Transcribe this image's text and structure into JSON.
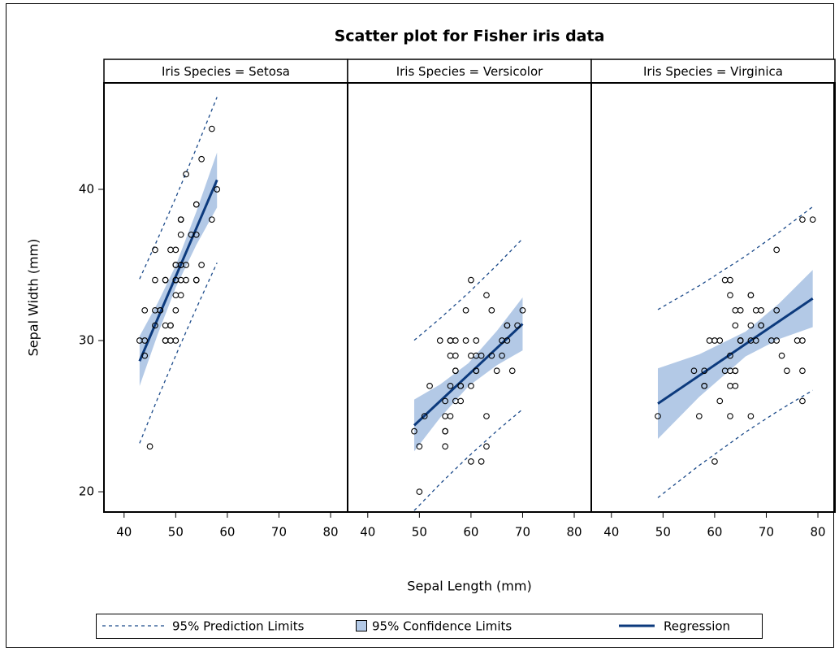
{
  "title": "Scatter plot for Fisher iris data",
  "xlabel": "Sepal Length (mm)",
  "ylabel": "Sepal Width (mm)",
  "marker_color": "#000000",
  "legend": [
    {
      "name": "95% Prediction Limits",
      "color": "#1b4a8a"
    },
    {
      "name": "95% Confidence Limits",
      "color": "#b3c9e6"
    },
    {
      "name": "Regression",
      "color": "#0c3a7d"
    }
  ],
  "chart_data": [
    {
      "type": "scatter",
      "title": "Iris Species = Setosa",
      "x": [
        51,
        49,
        47,
        46,
        50,
        54,
        46,
        50,
        44,
        49,
        54,
        48,
        48,
        43,
        58,
        57,
        54,
        51,
        57,
        51,
        54,
        51,
        46,
        51,
        48,
        50,
        50,
        52,
        52,
        47,
        48,
        54,
        52,
        55,
        49,
        50,
        55,
        49,
        44,
        51,
        50,
        45,
        44,
        50,
        51,
        48,
        51,
        46,
        53,
        50
      ],
      "values": [
        35,
        30,
        32,
        31,
        36,
        39,
        34,
        34,
        29,
        31,
        37,
        34,
        30,
        30,
        40,
        44,
        39,
        35,
        38,
        38,
        34,
        37,
        36,
        33,
        34,
        30,
        34,
        35,
        34,
        32,
        31,
        34,
        41,
        42,
        31,
        32,
        35,
        36,
        30,
        34,
        35,
        23,
        32,
        35,
        38,
        30,
        38,
        32,
        37,
        33
      ],
      "fit": {
        "x": [
          43,
          46.5,
          50,
          54,
          58
        ],
        "values": [
          28.64,
          31.44,
          34.23,
          37.43,
          40.62
        ],
        "clm_lower": [
          26.99,
          30.4,
          33.5,
          36.33,
          38.8
        ],
        "clm_upper": [
          30.29,
          32.48,
          34.96,
          38.53,
          42.44
        ],
        "pi_lower": [
          23.21,
          26.17,
          29.01,
          32.14,
          35.14
        ],
        "pi_upper": [
          34.07,
          36.71,
          39.45,
          42.72,
          46.1
        ]
      },
      "xlim": [
        36.1,
        83.3
      ],
      "xticks": [
        40,
        50,
        60,
        70,
        80
      ],
      "ylim": [
        18.66,
        47.04
      ],
      "yticks": [
        20,
        30,
        40
      ]
    },
    {
      "type": "scatter",
      "title": "Iris Species = Versicolor",
      "x": [
        70,
        64,
        69,
        55,
        65,
        57,
        63,
        49,
        66,
        52,
        50,
        59,
        60,
        61,
        56,
        67,
        56,
        58,
        62,
        56,
        59,
        61,
        63,
        61,
        64,
        66,
        68,
        67,
        60,
        57,
        55,
        55,
        58,
        60,
        54,
        60,
        67,
        63,
        56,
        55,
        55,
        61,
        58,
        50,
        56,
        57,
        57,
        62,
        51,
        57
      ],
      "values": [
        32,
        32,
        31,
        23,
        28,
        28,
        33,
        24,
        29,
        27,
        20,
        30,
        22,
        29,
        29,
        31,
        30,
        27,
        22,
        25,
        32,
        28,
        25,
        28,
        29,
        30,
        28,
        30,
        29,
        26,
        24,
        24,
        27,
        27,
        30,
        34,
        31,
        23,
        30,
        25,
        26,
        30,
        26,
        23,
        27,
        30,
        29,
        29,
        25,
        28
      ],
      "fit": {
        "x": [
          49,
          54,
          59.5,
          65,
          70
        ],
        "values": [
          24.39,
          25.99,
          27.74,
          29.5,
          31.1
        ],
        "clm_lower": [
          22.68,
          24.89,
          26.98,
          28.37,
          29.35
        ],
        "clm_upper": [
          26.1,
          27.09,
          28.5,
          30.63,
          32.85
        ],
        "pi_lower": [
          18.76,
          20.52,
          22.33,
          24.02,
          25.46
        ],
        "pi_upper": [
          30.02,
          31.46,
          33.15,
          34.98,
          36.74
        ]
      },
      "xlim": [
        36.1,
        83.3
      ],
      "xticks": [
        40,
        50,
        60,
        70,
        80
      ],
      "ylim": [
        18.66,
        47.04
      ]
    },
    {
      "type": "scatter",
      "title": "Iris Species = Virginica",
      "x": [
        63,
        58,
        71,
        63,
        65,
        76,
        49,
        73,
        67,
        72,
        65,
        64,
        68,
        57,
        58,
        64,
        65,
        77,
        77,
        60,
        69,
        56,
        77,
        63,
        67,
        72,
        62,
        61,
        64,
        72,
        74,
        79,
        64,
        63,
        61,
        77,
        63,
        64,
        60,
        69,
        67,
        69,
        58,
        68,
        67,
        67,
        63,
        65,
        62,
        59
      ],
      "values": [
        33,
        27,
        30,
        29,
        30,
        30,
        25,
        29,
        25,
        36,
        32,
        27,
        30,
        25,
        28,
        32,
        30,
        38,
        26,
        22,
        32,
        28,
        28,
        27,
        33,
        32,
        28,
        30,
        28,
        30,
        28,
        38,
        28,
        28,
        26,
        30,
        34,
        31,
        30,
        31,
        31,
        31,
        27,
        32,
        33,
        30,
        25,
        30,
        34,
        30
      ],
      "fit": {
        "x": [
          49,
          57,
          66,
          72.5,
          79
        ],
        "values": [
          25.83,
          27.68,
          29.77,
          31.28,
          32.78
        ],
        "clm_lower": [
          23.5,
          26.27,
          28.95,
          30.1,
          30.89
        ],
        "clm_upper": [
          28.16,
          29.09,
          30.59,
          32.46,
          34.67
        ],
        "pi_lower": [
          19.61,
          21.74,
          23.95,
          25.39,
          26.71
        ],
        "pi_upper": [
          32.05,
          33.62,
          35.59,
          37.17,
          38.85
        ]
      },
      "xlim": [
        36.1,
        83.3
      ],
      "xticks": [
        40,
        50,
        60,
        70,
        80
      ],
      "ylim": [
        18.66,
        47.04
      ]
    }
  ]
}
